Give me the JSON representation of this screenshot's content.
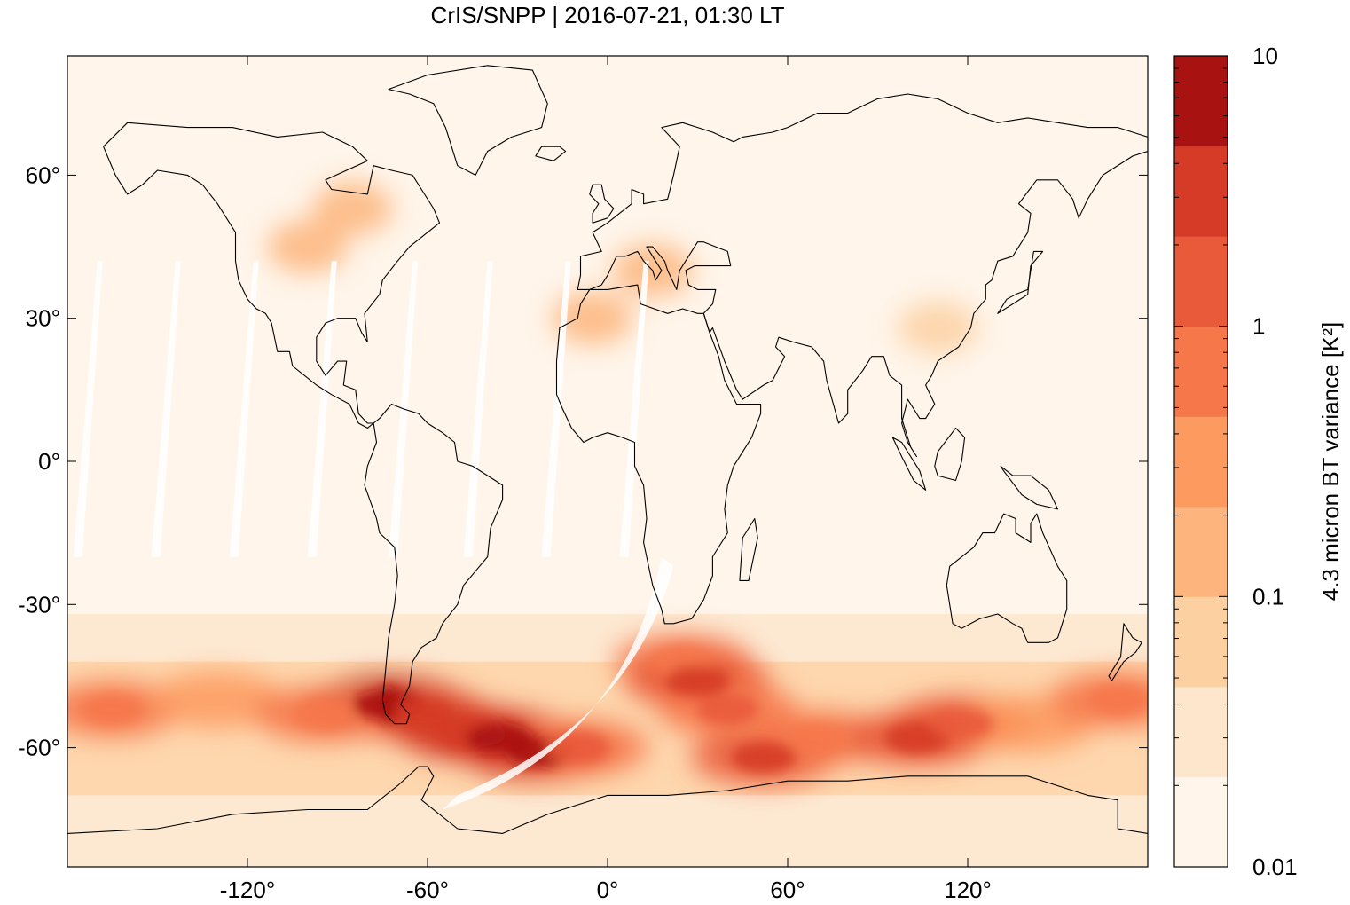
{
  "title": "CrIS/SNPP | 2016-07-21, 01:30 LT",
  "map": {
    "projection": "equirectangular",
    "lon_range": [
      -180,
      180
    ],
    "lat_range": [
      -85,
      85
    ],
    "x_ticks": [
      {
        "value": -120,
        "label": "-120°"
      },
      {
        "value": -60,
        "label": "-60°"
      },
      {
        "value": 0,
        "label": "0°"
      },
      {
        "value": 60,
        "label": "60°"
      },
      {
        "value": 120,
        "label": "120°"
      }
    ],
    "y_ticks": [
      {
        "value": 60,
        "label": "60°"
      },
      {
        "value": 30,
        "label": "30°"
      },
      {
        "value": 0,
        "label": "0°"
      },
      {
        "value": -30,
        "label": "-30°"
      },
      {
        "value": -60,
        "label": "-60°"
      }
    ],
    "coastline_color": "#000000",
    "background_color": "#fff5ea",
    "swath_gap_color": "#ffffff"
  },
  "colorbar": {
    "label": "4.3 micron BT variance [K²]",
    "scale": "log",
    "range": [
      0.01,
      10
    ],
    "tick_labels": [
      {
        "value": 0.01,
        "label": "0.01"
      },
      {
        "value": 0.1,
        "label": "0.1"
      },
      {
        "value": 1,
        "label": "1"
      },
      {
        "value": 10,
        "label": "10"
      }
    ],
    "colors": [
      "#fff5ea",
      "#fde6cc",
      "#fdd0a2",
      "#fdb57d",
      "#fd9a5f",
      "#f6774a",
      "#e95a3a",
      "#d53b26",
      "#a81211"
    ]
  },
  "chart_data": {
    "type": "heatmap",
    "title": "CrIS/SNPP | 2016-07-21, 01:30 LT",
    "x_axis": "longitude",
    "y_axis": "latitude",
    "xlim": [
      -180,
      180
    ],
    "ylim": [
      -85,
      85
    ],
    "value_label": "4.3 micron BT variance [K²]",
    "value_scale": "log",
    "value_range": [
      0.01,
      10
    ],
    "features": [
      {
        "lon": -73,
        "lat": -51,
        "value": 8.0
      },
      {
        "lon": -63,
        "lat": -53,
        "value": 1.5
      },
      {
        "lon": -45,
        "lat": -57,
        "value": 2.5
      },
      {
        "lon": -36,
        "lat": -58,
        "value": 3.0
      },
      {
        "lon": -23,
        "lat": -61,
        "value": 3.0
      },
      {
        "lon": -10,
        "lat": -60,
        "value": 0.8
      },
      {
        "lon": 25,
        "lat": -42,
        "value": 0.6
      },
      {
        "lon": 30,
        "lat": -46,
        "value": 1.5
      },
      {
        "lon": 40,
        "lat": -52,
        "value": 0.7
      },
      {
        "lon": 52,
        "lat": -62,
        "value": 1.5
      },
      {
        "lon": 70,
        "lat": -58,
        "value": 0.6
      },
      {
        "lon": 103,
        "lat": -58,
        "value": 1.5
      },
      {
        "lon": 118,
        "lat": -55,
        "value": 1.2
      },
      {
        "lon": 140,
        "lat": -55,
        "value": 0.35
      },
      {
        "lon": 170,
        "lat": -50,
        "value": 0.6
      },
      {
        "lon": -165,
        "lat": -52,
        "value": 0.5
      },
      {
        "lon": -130,
        "lat": -50,
        "value": 0.35
      },
      {
        "lon": -95,
        "lat": -53,
        "value": 0.5
      },
      {
        "lon": -85,
        "lat": 53,
        "value": 0.12
      },
      {
        "lon": -100,
        "lat": 45,
        "value": 0.15
      },
      {
        "lon": -5,
        "lat": 30,
        "value": 0.1
      },
      {
        "lon": 15,
        "lat": 40,
        "value": 0.1
      },
      {
        "lon": 110,
        "lat": 28,
        "value": 0.06
      }
    ]
  }
}
